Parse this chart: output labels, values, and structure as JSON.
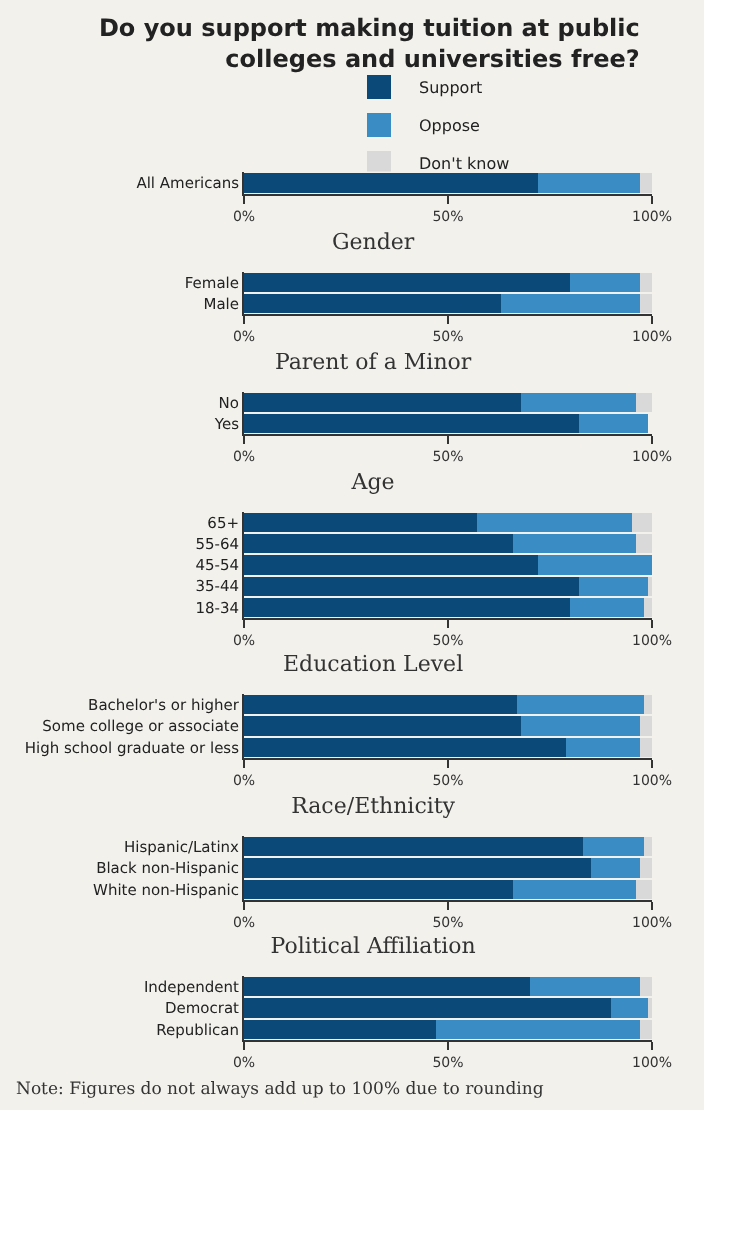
{
  "chart_data": [
    {
      "type": "bar",
      "orientation": "horizontal",
      "stacked": true,
      "title": "Do you support making tuition at public colleges and universities free?",
      "legend": "top",
      "categories": [
        "All Americans"
      ],
      "xlim": [
        0,
        100
      ],
      "xticks": [
        {
          "value": 0,
          "label": "0%"
        },
        {
          "value": 50,
          "label": "50%"
        },
        {
          "value": 100,
          "label": "100%"
        }
      ],
      "series": [
        {
          "name": "Support",
          "color": "#0b4a78",
          "values": [
            72
          ]
        },
        {
          "name": "Oppose",
          "color": "#3a8dc4",
          "values": [
            25
          ]
        },
        {
          "name": "Don't know",
          "color": "#d9d9d9",
          "values": [
            3
          ]
        }
      ]
    },
    {
      "type": "bar",
      "orientation": "horizontal",
      "stacked": true,
      "title": "Gender",
      "categories": [
        "Female",
        "Male"
      ],
      "xlim": [
        0,
        100
      ],
      "xticks": [
        {
          "value": 0,
          "label": "0%"
        },
        {
          "value": 50,
          "label": "50%"
        },
        {
          "value": 100,
          "label": "100%"
        }
      ],
      "series": [
        {
          "color": "#0b4a78",
          "values": [
            80,
            63
          ]
        },
        {
          "color": "#3a8dc4",
          "values": [
            17,
            34
          ]
        },
        {
          "color": "#d9d9d9",
          "values": [
            3,
            3
          ]
        }
      ]
    },
    {
      "type": "bar",
      "orientation": "horizontal",
      "stacked": true,
      "title": "Parent of a Minor",
      "categories": [
        "No",
        "Yes"
      ],
      "xlim": [
        0,
        100
      ],
      "xticks": [
        {
          "value": 0,
          "label": "0%"
        },
        {
          "value": 50,
          "label": "50%"
        },
        {
          "value": 100,
          "label": "100%"
        }
      ],
      "series": [
        {
          "color": "#0b4a78",
          "values": [
            68,
            82
          ]
        },
        {
          "color": "#3a8dc4",
          "values": [
            28,
            17
          ]
        },
        {
          "color": "#d9d9d9",
          "values": [
            4,
            0
          ]
        }
      ]
    },
    {
      "type": "bar",
      "orientation": "horizontal",
      "stacked": true,
      "title": "Age",
      "categories": [
        "65+",
        "55-64",
        "45-54",
        "35-44",
        "18-34"
      ],
      "xlim": [
        0,
        100
      ],
      "xticks": [
        {
          "value": 0,
          "label": "0%"
        },
        {
          "value": 50,
          "label": "50%"
        },
        {
          "value": 100,
          "label": "100%"
        }
      ],
      "series": [
        {
          "color": "#0b4a78",
          "values": [
            57,
            66,
            72,
            82,
            80
          ]
        },
        {
          "color": "#3a8dc4",
          "values": [
            38,
            30,
            28,
            17,
            18
          ]
        },
        {
          "color": "#d9d9d9",
          "values": [
            5,
            4,
            0,
            1,
            2
          ]
        }
      ]
    },
    {
      "type": "bar",
      "orientation": "horizontal",
      "stacked": true,
      "title": "Education Level",
      "categories": [
        "Bachelor's or higher",
        "Some college or associate",
        "High school graduate or less"
      ],
      "xlim": [
        0,
        100
      ],
      "xticks": [
        {
          "value": 0,
          "label": "0%"
        },
        {
          "value": 50,
          "label": "50%"
        },
        {
          "value": 100,
          "label": "100%"
        }
      ],
      "series": [
        {
          "color": "#0b4a78",
          "values": [
            67,
            68,
            79
          ]
        },
        {
          "color": "#3a8dc4",
          "values": [
            31,
            29,
            18
          ]
        },
        {
          "color": "#d9d9d9",
          "values": [
            2,
            3,
            3
          ]
        }
      ]
    },
    {
      "type": "bar",
      "orientation": "horizontal",
      "stacked": true,
      "title": "Race/Ethnicity",
      "categories": [
        "Hispanic/Latinx",
        "Black non-Hispanic",
        "White non-Hispanic"
      ],
      "xlim": [
        0,
        100
      ],
      "xticks": [
        {
          "value": 0,
          "label": "0%"
        },
        {
          "value": 50,
          "label": "50%"
        },
        {
          "value": 100,
          "label": "100%"
        }
      ],
      "series": [
        {
          "color": "#0b4a78",
          "values": [
            83,
            85,
            66
          ]
        },
        {
          "color": "#3a8dc4",
          "values": [
            15,
            12,
            30
          ]
        },
        {
          "color": "#d9d9d9",
          "values": [
            2,
            3,
            4
          ]
        }
      ]
    },
    {
      "type": "bar",
      "orientation": "horizontal",
      "stacked": true,
      "title": "Political Affiliation",
      "categories": [
        "Independent",
        "Democrat",
        "Republican"
      ],
      "xlim": [
        0,
        100
      ],
      "xticks": [
        {
          "value": 0,
          "label": "0%"
        },
        {
          "value": 50,
          "label": "50%"
        },
        {
          "value": 100,
          "label": "100%"
        }
      ],
      "annotations": [
        "Note: Figures do not always add up to 100% due to rounding"
      ],
      "series": [
        {
          "color": "#0b4a78",
          "values": [
            70,
            90,
            47
          ]
        },
        {
          "color": "#3a8dc4",
          "values": [
            27,
            9,
            50
          ]
        },
        {
          "color": "#d9d9d9",
          "values": [
            3,
            1,
            3
          ]
        }
      ]
    }
  ]
}
